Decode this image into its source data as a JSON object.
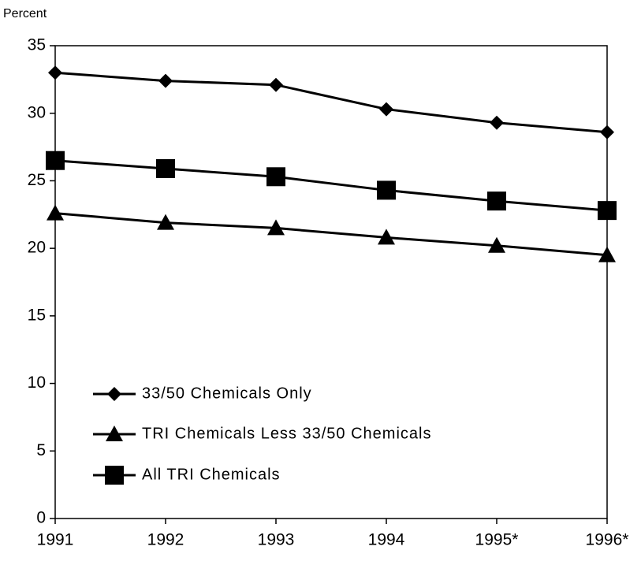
{
  "chart_data": {
    "type": "line",
    "y_label": "Percent",
    "categories": [
      "1991",
      "1992",
      "1993",
      "1994",
      "1995*",
      "1996*"
    ],
    "series": [
      {
        "name": "33/50 Chemicals Only",
        "color": "#000000",
        "marker": "diamond",
        "values": [
          33.0,
          32.4,
          32.1,
          30.3,
          29.3,
          28.6
        ]
      },
      {
        "name": "TRI Chemicals Less 33/50 Chemicals",
        "color": "#000000",
        "marker": "triangle",
        "values": [
          22.6,
          21.9,
          21.5,
          20.8,
          20.2,
          19.5
        ]
      },
      {
        "name": "All TRI Chemicals",
        "color": "#000000",
        "marker": "square",
        "values": [
          26.5,
          25.9,
          25.3,
          24.3,
          23.5,
          22.8
        ]
      }
    ],
    "ylim": [
      0,
      35
    ],
    "yticks": [
      0,
      5,
      10,
      15,
      20,
      25,
      30,
      35
    ],
    "grid": false,
    "legend": "lower left"
  }
}
